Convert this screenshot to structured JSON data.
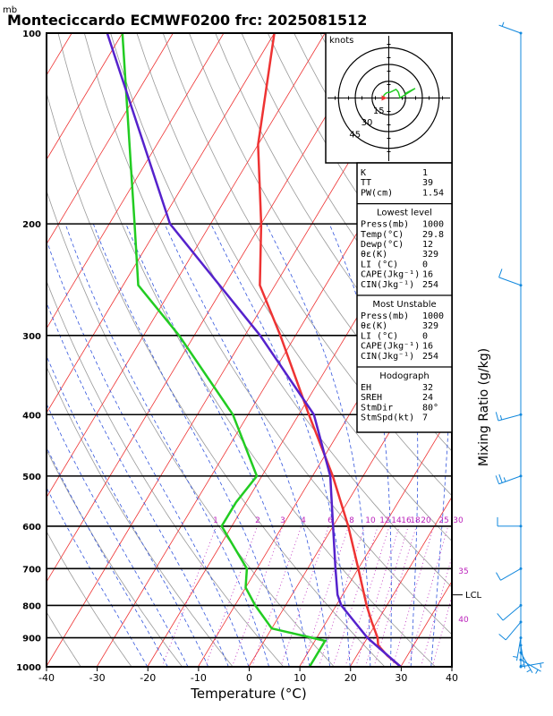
{
  "chart_data": {
    "type": "skewt-logp",
    "title": "Monteciccardo ECMWF0200 frc: 2025081512",
    "pressure_unit_label": "mb",
    "xlabel": "Temperature (°C)",
    "right_axis_label": "Mixing Ratio (g/kg)",
    "xlim": [
      -40,
      40
    ],
    "plim": [
      1000,
      100
    ],
    "x_ticks": [
      -40,
      -30,
      -20,
      -10,
      0,
      10,
      20,
      30,
      40
    ],
    "p_ticks": [
      1000,
      900,
      800,
      700,
      600,
      500,
      400,
      300,
      200,
      100
    ],
    "temperature": [
      {
        "p": 1000,
        "t": 30
      },
      {
        "p": 960,
        "t": 26
      },
      {
        "p": 925,
        "t": 23
      },
      {
        "p": 900,
        "t": 22
      },
      {
        "p": 850,
        "t": 19
      },
      {
        "p": 800,
        "t": 16
      },
      {
        "p": 700,
        "t": 10
      },
      {
        "p": 600,
        "t": 3
      },
      {
        "p": 500,
        "t": -6
      },
      {
        "p": 400,
        "t": -18
      },
      {
        "p": 300,
        "t": -33
      },
      {
        "p": 250,
        "t": -43
      },
      {
        "p": 200,
        "t": -50
      },
      {
        "p": 150,
        "t": -60
      },
      {
        "p": 100,
        "t": -70
      }
    ],
    "dewpoint": [
      {
        "p": 1000,
        "t": 12
      },
      {
        "p": 950,
        "t": 12
      },
      {
        "p": 910,
        "t": 12
      },
      {
        "p": 870,
        "t": 0
      },
      {
        "p": 800,
        "t": -6
      },
      {
        "p": 750,
        "t": -10
      },
      {
        "p": 700,
        "t": -12
      },
      {
        "p": 600,
        "t": -22
      },
      {
        "p": 550,
        "t": -22
      },
      {
        "p": 500,
        "t": -21
      },
      {
        "p": 400,
        "t": -33
      },
      {
        "p": 300,
        "t": -53
      },
      {
        "p": 250,
        "t": -67
      },
      {
        "p": 200,
        "t": -75
      },
      {
        "p": 100,
        "t": -100
      }
    ],
    "parcel": [
      {
        "p": 1000,
        "t": 30
      },
      {
        "p": 900,
        "t": 20
      },
      {
        "p": 800,
        "t": 11
      },
      {
        "p": 770,
        "t": 9
      },
      {
        "p": 700,
        "t": 5.5
      },
      {
        "p": 600,
        "t": 0
      },
      {
        "p": 500,
        "t": -6.5
      },
      {
        "p": 400,
        "t": -17
      },
      {
        "p": 300,
        "t": -37
      },
      {
        "p": 200,
        "t": -68
      },
      {
        "p": 100,
        "t": -103
      }
    ],
    "mixing_ratio_labels": [
      "1",
      "2",
      "3",
      "4",
      "6",
      "8",
      "10",
      "12",
      "14",
      "16",
      "18",
      "20",
      "25",
      "30",
      "35",
      "40"
    ],
    "lcl_label": "LCL",
    "lcl_pressure": 770,
    "hodograph": {
      "units_label": "knots",
      "ring_labels": [
        "15",
        "30",
        "45"
      ],
      "ring_values": [
        15,
        30,
        45
      ]
    },
    "winds": [
      {
        "p": 1000,
        "dir": 80,
        "spd": 5
      },
      {
        "p": 975,
        "dir": 120,
        "spd": 5
      },
      {
        "p": 950,
        "dir": 150,
        "spd": 5
      },
      {
        "p": 925,
        "dir": 170,
        "spd": 5
      },
      {
        "p": 900,
        "dir": 190,
        "spd": 5
      },
      {
        "p": 850,
        "dir": 220,
        "spd": 10
      },
      {
        "p": 800,
        "dir": 230,
        "spd": 10
      },
      {
        "p": 700,
        "dir": 240,
        "spd": 10
      },
      {
        "p": 600,
        "dir": 270,
        "spd": 10
      },
      {
        "p": 500,
        "dir": 250,
        "spd": 25
      },
      {
        "p": 400,
        "dir": 255,
        "spd": 15
      },
      {
        "p": 250,
        "dir": 290,
        "spd": 10
      },
      {
        "p": 100,
        "dir": 290,
        "spd": 5
      }
    ]
  },
  "stats": {
    "general": [
      {
        "label": "K",
        "value": "1"
      },
      {
        "label": "TT",
        "value": "39"
      },
      {
        "label": "PW(cm)",
        "value": "1.54"
      }
    ],
    "lowest_level": {
      "heading": "Lowest level",
      "rows": [
        {
          "label": "Press(mb)",
          "value": "1000"
        },
        {
          "label": "Temp(°C)",
          "value": "29.8"
        },
        {
          "label": "Dewp(°C)",
          "value": "12"
        },
        {
          "label": "θε(K)",
          "value": "329"
        },
        {
          "label": "LI (°C)",
          "value": "0"
        },
        {
          "label": "CAPE(Jkg⁻¹)",
          "value": "16"
        },
        {
          "label": "CIN(Jkg⁻¹)",
          "value": "254"
        }
      ]
    },
    "most_unstable": {
      "heading": "Most Unstable",
      "rows": [
        {
          "label": "Press(mb)",
          "value": "1000"
        },
        {
          "label": "θε(K)",
          "value": "329"
        },
        {
          "label": "LI (°C)",
          "value": "0"
        },
        {
          "label": "CAPE(Jkg⁻¹)",
          "value": "16"
        },
        {
          "label": "CIN(Jkg⁻¹)",
          "value": "254"
        }
      ]
    },
    "hodograph_stats": {
      "heading": "Hodograph",
      "rows": [
        {
          "label": "EH",
          "value": "32"
        },
        {
          "label": "SREH",
          "value": "24"
        },
        {
          "label": "StmDir",
          "value": "80°"
        },
        {
          "label": "StmSpd(kt)",
          "value": "7"
        }
      ]
    }
  },
  "colors": {
    "temperature": "#ee3333",
    "dewpoint": "#22cc22",
    "parcel": "#5522cc",
    "isotherm": "#ee3333",
    "dry_adiabat": "#999999",
    "moist_adiabat": "#3355dd",
    "mixing_ratio": "#bb22bb",
    "wind_barb": "#1188dd"
  }
}
